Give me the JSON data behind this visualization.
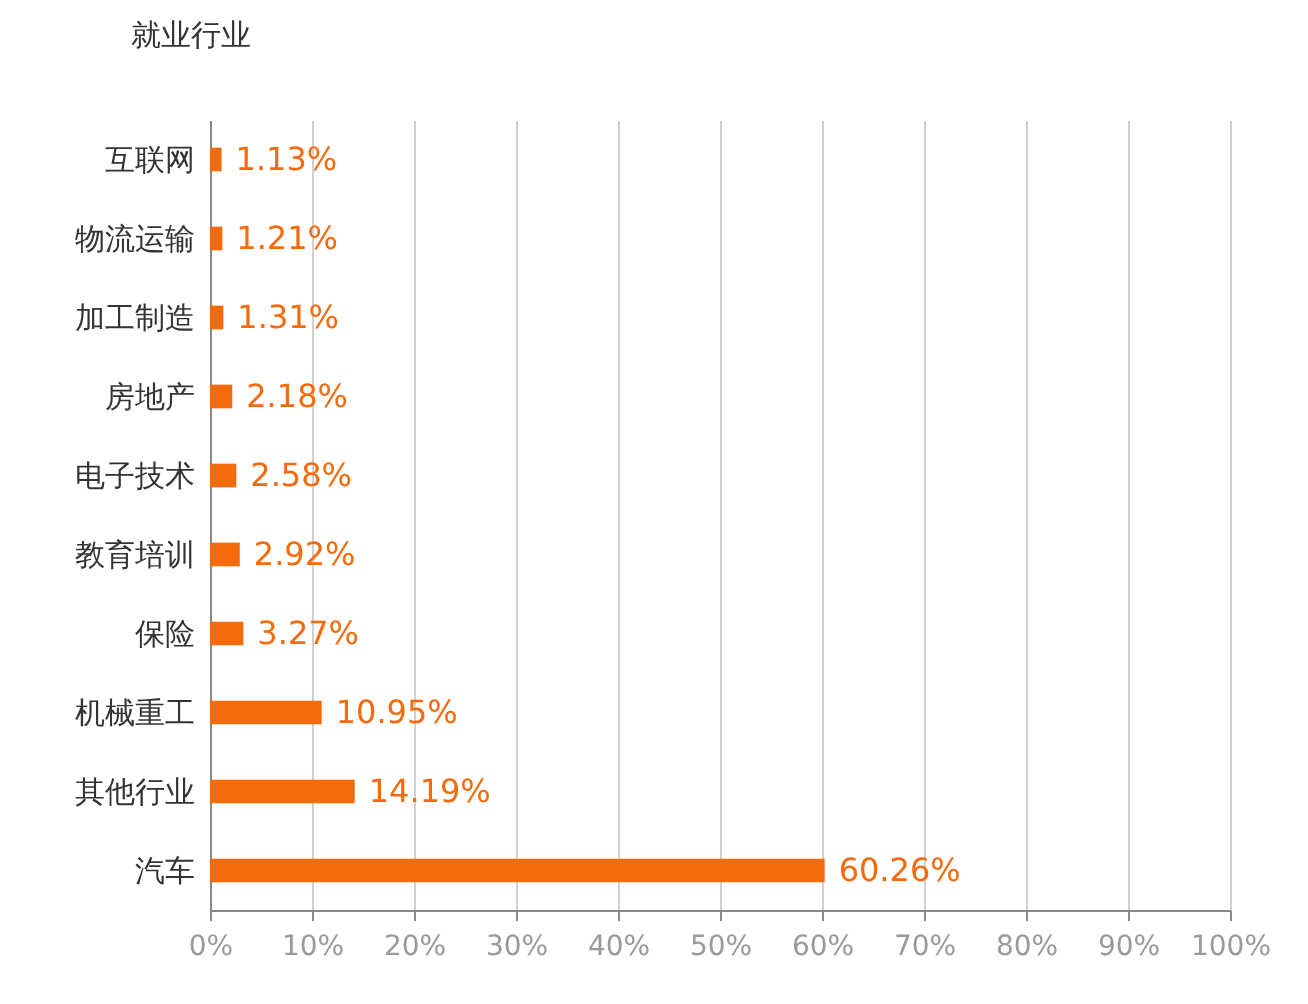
{
  "chart_data": {
    "type": "bar",
    "orientation": "horizontal",
    "ylabel": "就业行业",
    "categories": [
      "互联网",
      "物流运输",
      "加工制造",
      "房地产",
      "电子技术",
      "教育培训",
      "保险",
      "机械重工",
      "其他行业",
      "汽车"
    ],
    "values": [
      1.13,
      1.21,
      1.31,
      2.18,
      2.58,
      2.92,
      3.27,
      10.95,
      14.19,
      60.26
    ],
    "value_labels": [
      "1.13%",
      "1.21%",
      "1.31%",
      "2.18%",
      "2.58%",
      "2.92%",
      "3.27%",
      "10.95%",
      "14.19%",
      "60.26%"
    ],
    "color": "#f56a0a",
    "xlim": [
      0,
      100
    ],
    "xticks": [
      {
        "value": 0,
        "label": "0%"
      },
      {
        "value": 10,
        "label": "10%"
      },
      {
        "value": 20,
        "label": "20%"
      },
      {
        "value": 30,
        "label": "30%"
      },
      {
        "value": 40,
        "label": "40%"
      },
      {
        "value": 50,
        "label": "50%"
      },
      {
        "value": 60,
        "label": "60%"
      },
      {
        "value": 70,
        "label": "70%"
      },
      {
        "value": 80,
        "label": "80%"
      },
      {
        "value": 90,
        "label": "90%"
      },
      {
        "value": 100,
        "label": "100%"
      }
    ],
    "grid": "x"
  }
}
